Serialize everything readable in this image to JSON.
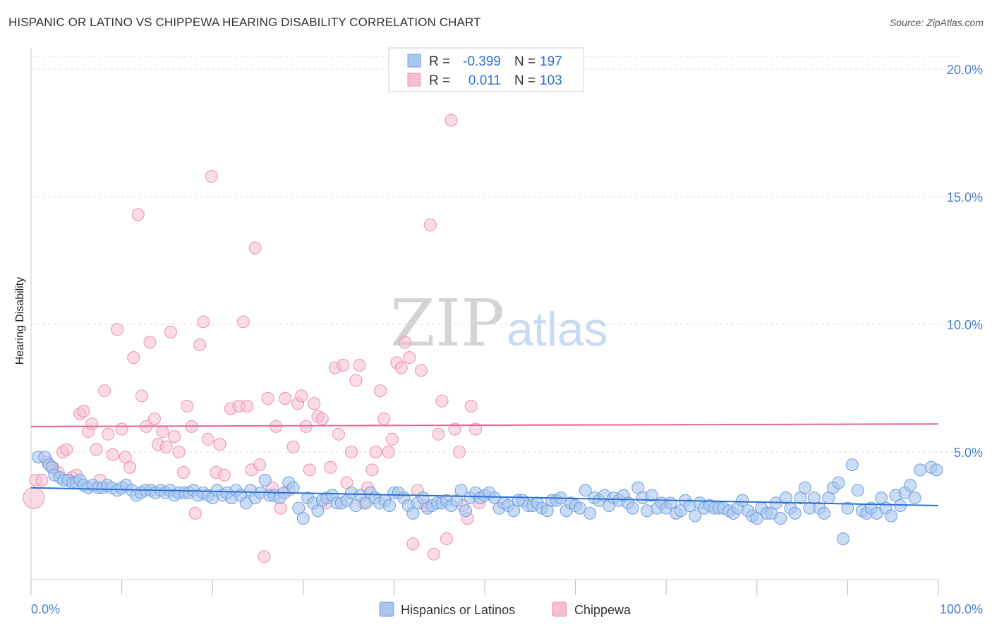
{
  "title": "HISPANIC OR LATINO VS CHIPPEWA HEARING DISABILITY CORRELATION CHART",
  "source": "Source: ZipAtlas.com",
  "watermark": {
    "zip": "ZIP",
    "atlas": "atlas"
  },
  "colors": {
    "blue_fill": "#a9c6ef",
    "blue_stroke": "#6f9fdf",
    "blue_line": "#2b6fd6",
    "pink_fill": "#f7bfd0",
    "pink_stroke": "#ec8fae",
    "pink_line": "#e86592",
    "grid": "#dddddd",
    "axis_text": "#4a7fd4"
  },
  "legend": {
    "rows": [
      {
        "r_label": "R =",
        "r_value": "-0.399",
        "n_label": "N =",
        "n_value": "197"
      },
      {
        "r_label": "R =",
        "r_value": "0.011",
        "n_label": "N =",
        "n_value": "103"
      }
    ]
  },
  "bottom_legend": {
    "series1": "Hispanics or Latinos",
    "series2": "Chippewa"
  },
  "chart_data": {
    "type": "scatter",
    "title": "HISPANIC OR LATINO VS CHIPPEWA HEARING DISABILITY CORRELATION CHART",
    "xlabel": "",
    "ylabel": "Hearing Disability",
    "xlim": [
      0,
      100
    ],
    "ylim": [
      0,
      20.5
    ],
    "x_tick_labels": [
      "0.0%",
      "100.0%"
    ],
    "y_ticks": [
      5,
      10,
      15,
      20
    ],
    "y_tick_labels": [
      "5.0%",
      "10.0%",
      "15.0%",
      "20.0%"
    ],
    "series": [
      {
        "name": "Hispanics or Latinos",
        "r": -0.399,
        "n": 197,
        "trend": {
          "x": [
            0,
            100
          ],
          "y": [
            3.6,
            2.9
          ]
        },
        "points": [
          [
            0.8,
            4.8
          ],
          [
            1.5,
            4.8
          ],
          [
            2.0,
            4.5
          ],
          [
            2.3,
            4.4
          ],
          [
            2.6,
            4.1
          ],
          [
            3.2,
            4.0
          ],
          [
            3.6,
            3.9
          ],
          [
            4.1,
            3.9
          ],
          [
            4.6,
            3.8
          ],
          [
            5.0,
            3.8
          ],
          [
            5.4,
            3.9
          ],
          [
            5.8,
            3.7
          ],
          [
            6.3,
            3.6
          ],
          [
            6.8,
            3.7
          ],
          [
            7.4,
            3.6
          ],
          [
            7.9,
            3.6
          ],
          [
            8.4,
            3.7
          ],
          [
            8.9,
            3.6
          ],
          [
            9.5,
            3.5
          ],
          [
            10.0,
            3.6
          ],
          [
            10.5,
            3.7
          ],
          [
            11.1,
            3.5
          ],
          [
            11.6,
            3.3
          ],
          [
            12.1,
            3.4
          ],
          [
            12.6,
            3.5
          ],
          [
            13.2,
            3.5
          ],
          [
            13.7,
            3.4
          ],
          [
            14.3,
            3.5
          ],
          [
            14.8,
            3.4
          ],
          [
            15.3,
            3.5
          ],
          [
            15.8,
            3.3
          ],
          [
            16.3,
            3.4
          ],
          [
            16.9,
            3.4
          ],
          [
            17.4,
            3.4
          ],
          [
            17.9,
            3.5
          ],
          [
            18.4,
            3.3
          ],
          [
            19.0,
            3.4
          ],
          [
            19.5,
            3.3
          ],
          [
            20.0,
            3.2
          ],
          [
            20.5,
            3.5
          ],
          [
            21.1,
            3.3
          ],
          [
            21.6,
            3.4
          ],
          [
            22.1,
            3.2
          ],
          [
            22.6,
            3.5
          ],
          [
            23.1,
            3.3
          ],
          [
            23.7,
            3.0
          ],
          [
            24.2,
            3.5
          ],
          [
            24.7,
            3.2
          ],
          [
            25.3,
            3.4
          ],
          [
            25.8,
            3.9
          ],
          [
            26.3,
            3.3
          ],
          [
            26.8,
            3.3
          ],
          [
            27.4,
            3.2
          ],
          [
            27.9,
            3.4
          ],
          [
            28.4,
            3.8
          ],
          [
            28.9,
            3.6
          ],
          [
            29.5,
            2.8
          ],
          [
            30.0,
            2.4
          ],
          [
            30.5,
            3.2
          ],
          [
            31.1,
            3.0
          ],
          [
            31.6,
            2.7
          ],
          [
            32.1,
            3.1
          ],
          [
            32.6,
            3.2
          ],
          [
            33.2,
            3.3
          ],
          [
            33.7,
            3.0
          ],
          [
            34.2,
            3.0
          ],
          [
            34.8,
            3.1
          ],
          [
            35.3,
            3.4
          ],
          [
            35.8,
            2.9
          ],
          [
            36.3,
            3.3
          ],
          [
            36.9,
            3.0
          ],
          [
            37.4,
            3.4
          ],
          [
            37.9,
            3.2
          ],
          [
            38.4,
            3.0
          ],
          [
            39.0,
            3.1
          ],
          [
            39.5,
            2.9
          ],
          [
            40.0,
            3.4
          ],
          [
            40.5,
            3.4
          ],
          [
            41.1,
            3.2
          ],
          [
            41.6,
            2.9
          ],
          [
            42.1,
            2.6
          ],
          [
            42.6,
            3.0
          ],
          [
            43.2,
            3.2
          ],
          [
            43.7,
            2.8
          ],
          [
            44.2,
            2.9
          ],
          [
            44.8,
            3.0
          ],
          [
            45.3,
            3.0
          ],
          [
            45.8,
            3.1
          ],
          [
            46.3,
            2.9
          ],
          [
            46.9,
            3.1
          ],
          [
            47.4,
            3.5
          ],
          [
            47.9,
            2.7
          ],
          [
            48.4,
            3.2
          ],
          [
            49.0,
            3.4
          ],
          [
            49.5,
            3.2
          ],
          [
            50.0,
            3.3
          ],
          [
            50.5,
            3.4
          ],
          [
            51.1,
            3.2
          ],
          [
            51.6,
            2.8
          ],
          [
            52.1,
            3.0
          ],
          [
            52.6,
            2.9
          ],
          [
            53.2,
            2.7
          ],
          [
            53.7,
            3.1
          ],
          [
            54.2,
            3.1
          ],
          [
            54.8,
            2.9
          ],
          [
            55.3,
            2.9
          ],
          [
            55.8,
            3.0
          ],
          [
            56.3,
            2.8
          ],
          [
            56.9,
            2.7
          ],
          [
            57.4,
            3.1
          ],
          [
            57.9,
            3.1
          ],
          [
            58.4,
            3.2
          ],
          [
            59.0,
            2.7
          ],
          [
            59.5,
            3.0
          ],
          [
            60.0,
            2.9
          ],
          [
            60.5,
            2.8
          ],
          [
            61.1,
            3.5
          ],
          [
            61.6,
            2.6
          ],
          [
            62.1,
            3.2
          ],
          [
            62.6,
            3.1
          ],
          [
            63.2,
            3.3
          ],
          [
            63.7,
            2.9
          ],
          [
            64.2,
            3.2
          ],
          [
            64.8,
            3.1
          ],
          [
            65.3,
            3.3
          ],
          [
            65.8,
            3.0
          ],
          [
            66.3,
            2.8
          ],
          [
            66.9,
            3.6
          ],
          [
            67.4,
            3.2
          ],
          [
            67.9,
            2.7
          ],
          [
            68.4,
            3.3
          ],
          [
            69.0,
            2.8
          ],
          [
            69.5,
            3.0
          ],
          [
            70.0,
            2.8
          ],
          [
            70.5,
            3.0
          ],
          [
            71.1,
            2.6
          ],
          [
            71.6,
            2.7
          ],
          [
            72.1,
            3.1
          ],
          [
            72.6,
            2.9
          ],
          [
            73.2,
            2.5
          ],
          [
            73.7,
            3.0
          ],
          [
            74.2,
            2.8
          ],
          [
            74.8,
            2.9
          ],
          [
            75.3,
            2.8
          ],
          [
            75.8,
            2.8
          ],
          [
            76.3,
            2.8
          ],
          [
            76.9,
            2.7
          ],
          [
            77.4,
            2.6
          ],
          [
            77.9,
            2.8
          ],
          [
            78.4,
            3.1
          ],
          [
            79.0,
            2.7
          ],
          [
            79.5,
            2.5
          ],
          [
            80.0,
            2.4
          ],
          [
            80.5,
            2.8
          ],
          [
            81.1,
            2.6
          ],
          [
            81.6,
            2.6
          ],
          [
            82.1,
            3.0
          ],
          [
            82.6,
            2.4
          ],
          [
            83.2,
            3.2
          ],
          [
            83.7,
            2.8
          ],
          [
            84.2,
            2.6
          ],
          [
            84.8,
            3.2
          ],
          [
            85.3,
            3.6
          ],
          [
            85.8,
            2.8
          ],
          [
            86.3,
            3.2
          ],
          [
            86.9,
            2.8
          ],
          [
            87.4,
            2.6
          ],
          [
            87.9,
            3.2
          ],
          [
            88.4,
            3.6
          ],
          [
            89.0,
            3.8
          ],
          [
            89.5,
            1.6
          ],
          [
            90.0,
            2.8
          ],
          [
            90.5,
            4.5
          ],
          [
            91.1,
            3.5
          ],
          [
            91.6,
            2.7
          ],
          [
            92.1,
            2.6
          ],
          [
            92.6,
            2.8
          ],
          [
            93.2,
            2.6
          ],
          [
            93.7,
            3.2
          ],
          [
            94.2,
            2.8
          ],
          [
            94.8,
            2.5
          ],
          [
            95.3,
            3.3
          ],
          [
            95.8,
            2.9
          ],
          [
            96.3,
            3.4
          ],
          [
            96.9,
            3.7
          ],
          [
            97.4,
            3.2
          ],
          [
            98.0,
            4.3
          ],
          [
            99.2,
            4.4
          ],
          [
            99.8,
            4.3
          ]
        ]
      },
      {
        "name": "Chippewa",
        "r": 0.011,
        "n": 103,
        "trend": {
          "x": [
            0,
            100
          ],
          "y": [
            6.0,
            6.1
          ]
        },
        "points": [
          [
            0.3,
            3.2
          ],
          [
            0.5,
            3.9
          ],
          [
            1.2,
            3.9
          ],
          [
            1.8,
            4.6
          ],
          [
            2.4,
            4.4
          ],
          [
            3.0,
            4.2
          ],
          [
            3.5,
            5.0
          ],
          [
            3.9,
            5.1
          ],
          [
            4.5,
            4.0
          ],
          [
            5.0,
            4.1
          ],
          [
            5.4,
            6.5
          ],
          [
            5.8,
            6.6
          ],
          [
            6.3,
            5.8
          ],
          [
            6.7,
            6.1
          ],
          [
            7.2,
            5.1
          ],
          [
            7.6,
            3.9
          ],
          [
            8.1,
            7.4
          ],
          [
            8.5,
            5.7
          ],
          [
            9.0,
            4.9
          ],
          [
            9.5,
            9.8
          ],
          [
            10.0,
            5.9
          ],
          [
            10.4,
            4.8
          ],
          [
            10.9,
            4.4
          ],
          [
            11.3,
            8.7
          ],
          [
            11.8,
            14.3
          ],
          [
            12.2,
            7.2
          ],
          [
            12.7,
            6.0
          ],
          [
            13.1,
            9.3
          ],
          [
            13.6,
            6.3
          ],
          [
            14.0,
            5.3
          ],
          [
            14.5,
            5.8
          ],
          [
            14.9,
            5.2
          ],
          [
            15.4,
            9.7
          ],
          [
            15.8,
            5.6
          ],
          [
            16.3,
            5.0
          ],
          [
            16.8,
            4.2
          ],
          [
            17.2,
            6.8
          ],
          [
            17.7,
            6.0
          ],
          [
            18.1,
            2.6
          ],
          [
            18.6,
            9.2
          ],
          [
            19.0,
            10.1
          ],
          [
            19.5,
            5.5
          ],
          [
            19.9,
            15.8
          ],
          [
            20.4,
            4.2
          ],
          [
            20.8,
            5.3
          ],
          [
            21.3,
            4.1
          ],
          [
            22.0,
            6.7
          ],
          [
            22.9,
            6.8
          ],
          [
            23.4,
            10.1
          ],
          [
            23.8,
            6.8
          ],
          [
            24.3,
            4.3
          ],
          [
            24.7,
            13.0
          ],
          [
            25.2,
            4.5
          ],
          [
            25.7,
            0.9
          ],
          [
            26.1,
            7.1
          ],
          [
            26.6,
            3.6
          ],
          [
            27.0,
            6.0
          ],
          [
            27.5,
            2.8
          ],
          [
            28.0,
            7.1
          ],
          [
            28.4,
            3.5
          ],
          [
            28.9,
            5.2
          ],
          [
            29.4,
            6.9
          ],
          [
            29.8,
            7.2
          ],
          [
            30.3,
            6.0
          ],
          [
            30.7,
            4.3
          ],
          [
            31.2,
            6.9
          ],
          [
            31.6,
            6.4
          ],
          [
            32.1,
            6.3
          ],
          [
            32.5,
            3.0
          ],
          [
            33.0,
            4.4
          ],
          [
            33.5,
            8.3
          ],
          [
            33.9,
            5.7
          ],
          [
            34.4,
            8.4
          ],
          [
            34.8,
            3.8
          ],
          [
            35.3,
            5.0
          ],
          [
            35.8,
            7.8
          ],
          [
            36.2,
            8.4
          ],
          [
            36.7,
            3.0
          ],
          [
            37.1,
            3.6
          ],
          [
            37.6,
            4.3
          ],
          [
            38.0,
            5.0
          ],
          [
            38.5,
            7.4
          ],
          [
            38.9,
            6.3
          ],
          [
            39.4,
            5.0
          ],
          [
            39.8,
            5.5
          ],
          [
            40.3,
            8.5
          ],
          [
            40.8,
            8.3
          ],
          [
            41.2,
            9.3
          ],
          [
            41.7,
            8.7
          ],
          [
            42.1,
            1.4
          ],
          [
            42.6,
            3.5
          ],
          [
            43.0,
            8.2
          ],
          [
            43.5,
            2.9
          ],
          [
            44.0,
            13.9
          ],
          [
            44.4,
            1.0
          ],
          [
            44.9,
            5.7
          ],
          [
            45.3,
            7.0
          ],
          [
            45.8,
            1.6
          ],
          [
            46.3,
            18.0
          ],
          [
            46.7,
            5.9
          ],
          [
            47.2,
            5.0
          ],
          [
            47.6,
            2.9
          ],
          [
            48.1,
            2.4
          ],
          [
            48.5,
            6.8
          ],
          [
            49.0,
            5.9
          ],
          [
            49.4,
            3.0
          ]
        ]
      }
    ]
  }
}
